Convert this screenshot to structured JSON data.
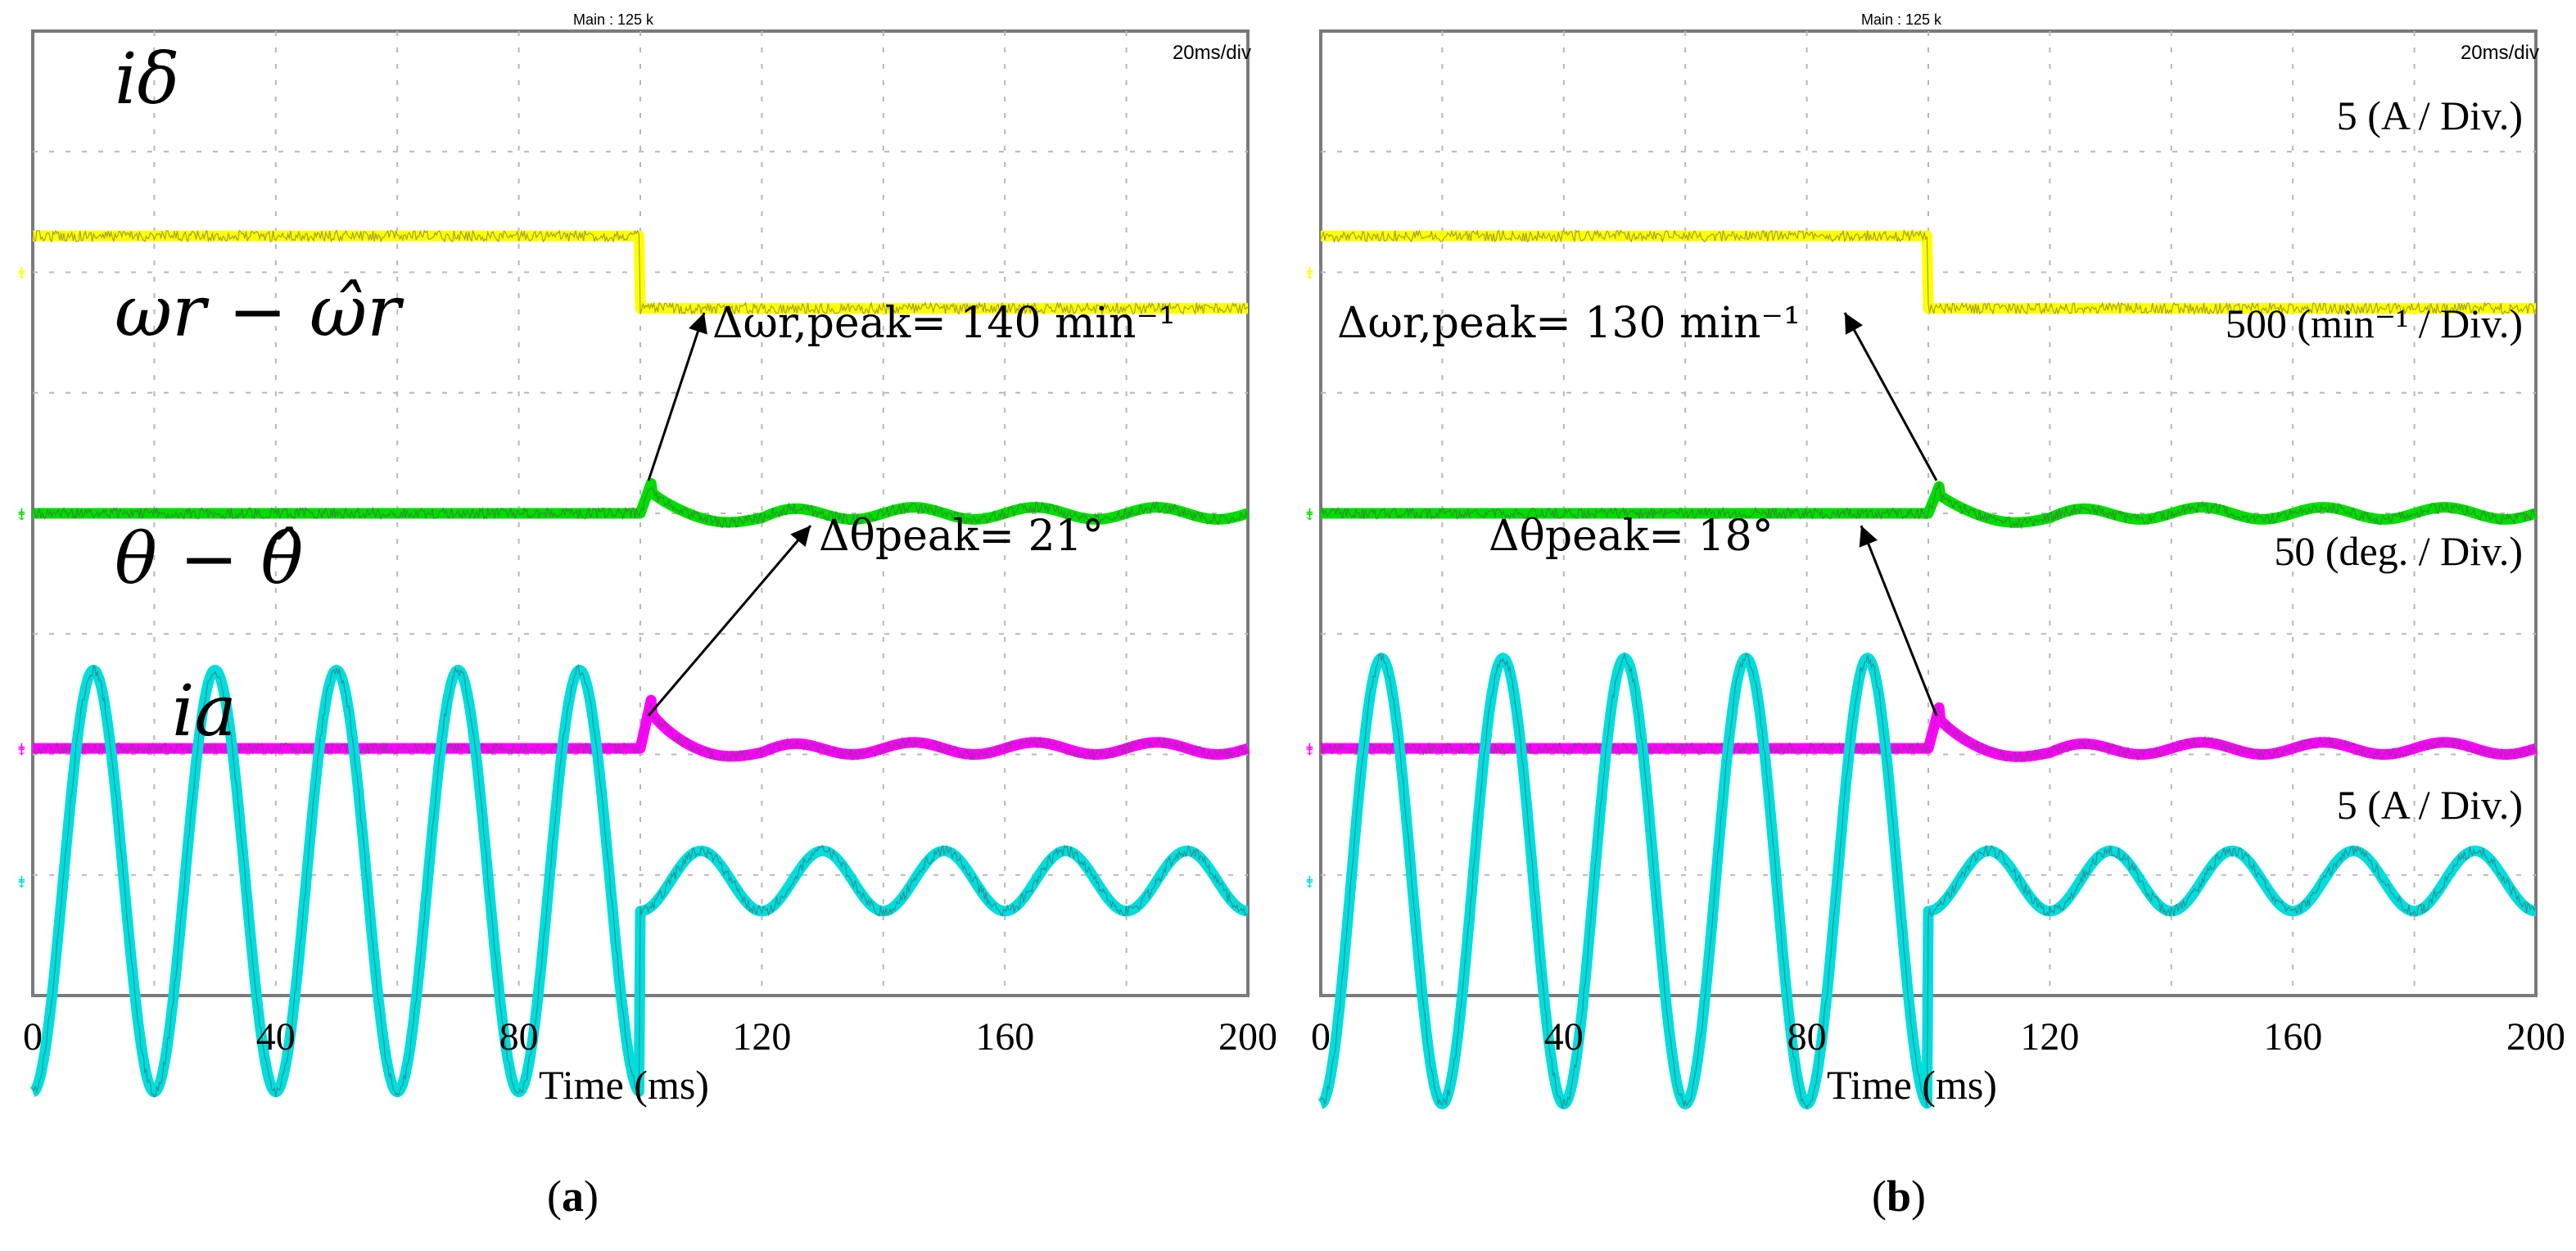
{
  "chart_data": [
    {
      "type": "line",
      "panel_label": "a",
      "header_left": "Main : 125 k",
      "header_right": "20ms/div",
      "xlabel": "Time (ms)",
      "x_ticks": [
        "0",
        "40",
        "80",
        "120",
        "160",
        "200"
      ],
      "xlim": [
        0,
        200
      ],
      "step_time_ms": 100,
      "series": [
        {
          "name": "i_delta",
          "label": "iδ",
          "color": "#ffff00",
          "before": 0.3,
          "after": -0.3,
          "scale": ""
        },
        {
          "name": "omega_error",
          "label": "ωr − ω̂r",
          "color": "#00dd00",
          "baseline": 0.0,
          "peak": 0.28,
          "scale": ""
        },
        {
          "name": "theta_error",
          "label": "θ − θ̂",
          "color": "#ff00ff",
          "baseline": 0.0,
          "peak": 0.45,
          "scale": ""
        },
        {
          "name": "i_a",
          "label": "ia",
          "color": "#00dddd",
          "amp_before": 1.75,
          "amp_after": 0.25,
          "freq_hz": 50,
          "scale": ""
        }
      ],
      "annotations": [
        {
          "series": "omega_error",
          "text": "Δωr,peak= 140 min⁻¹"
        },
        {
          "series": "theta_error",
          "text": "Δθpeak= 21°"
        }
      ]
    },
    {
      "type": "line",
      "panel_label": "b",
      "header_left": "Main : 125 k",
      "header_right": "20ms/div",
      "xlabel": "Time (ms)",
      "x_ticks": [
        "0",
        "40",
        "80",
        "120",
        "160",
        "200"
      ],
      "xlim": [
        0,
        200
      ],
      "step_time_ms": 100,
      "series": [
        {
          "name": "i_delta",
          "label": "",
          "color": "#ffff00",
          "before": 0.3,
          "after": -0.3,
          "scale": "5 (A / Div.)"
        },
        {
          "name": "omega_error",
          "label": "",
          "color": "#00dd00",
          "baseline": 0.0,
          "peak": 0.25,
          "scale": "500 (min⁻¹ / Div.)"
        },
        {
          "name": "theta_error",
          "label": "",
          "color": "#ff00ff",
          "baseline": 0.0,
          "peak": 0.38,
          "scale": "50 (deg. / Div.)"
        },
        {
          "name": "i_a",
          "label": "",
          "color": "#00dddd",
          "amp_before": 1.85,
          "amp_after": 0.25,
          "freq_hz": 50,
          "scale": "5 (A / Div.)"
        }
      ],
      "annotations": [
        {
          "series": "omega_error",
          "text": "Δωr,peak= 130 min⁻¹"
        },
        {
          "series": "theta_error",
          "text": "Δθpeak= 18°"
        }
      ]
    }
  ]
}
